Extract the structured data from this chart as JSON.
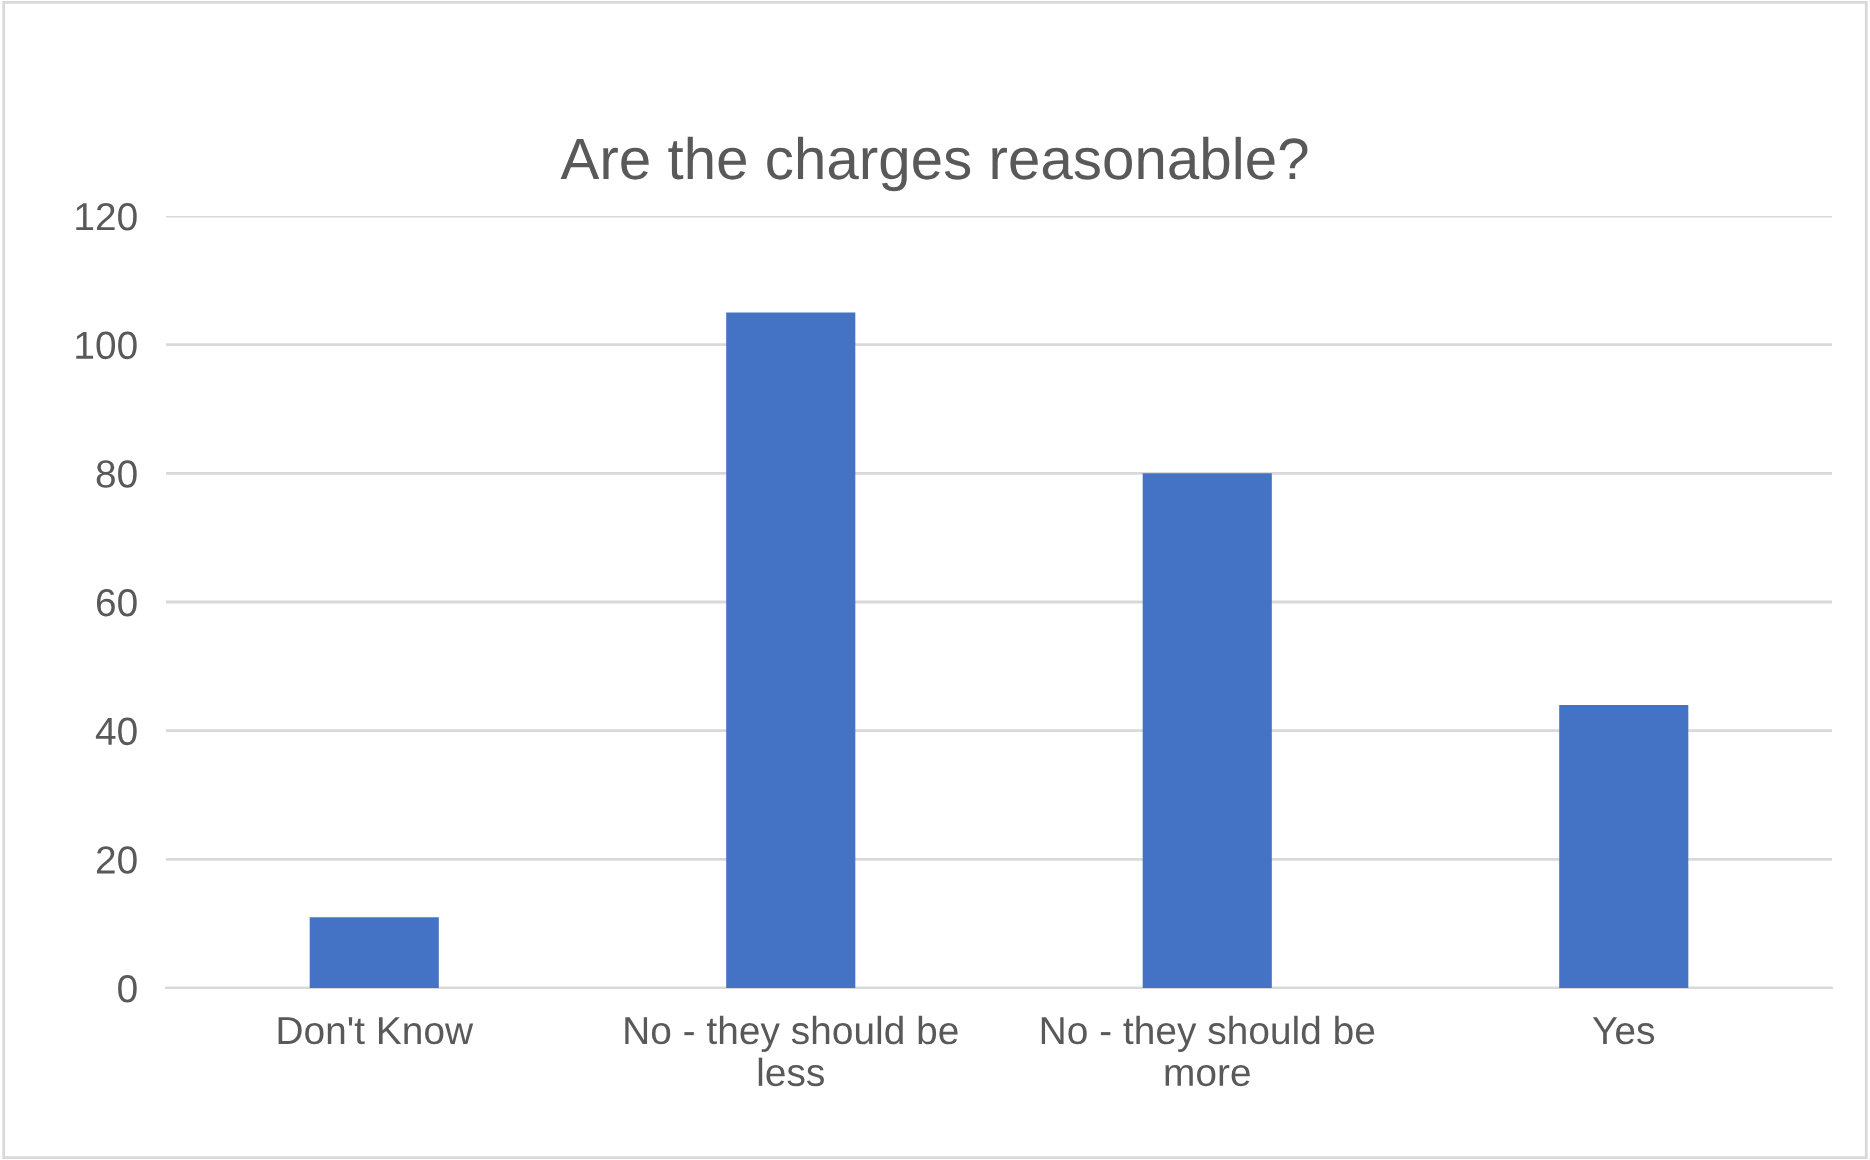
{
  "chart_data": {
    "type": "bar",
    "title": "Are the charges reasonable?",
    "categories": [
      "Don't Know",
      "No - they should be less",
      "No - they should be more",
      "Yes"
    ],
    "values": [
      11,
      105,
      80,
      44
    ],
    "color": "#4472c4",
    "ylim": [
      0,
      120
    ],
    "yticks": [
      0,
      20,
      40,
      60,
      80,
      100,
      120
    ],
    "grid": "y",
    "legend": false
  }
}
